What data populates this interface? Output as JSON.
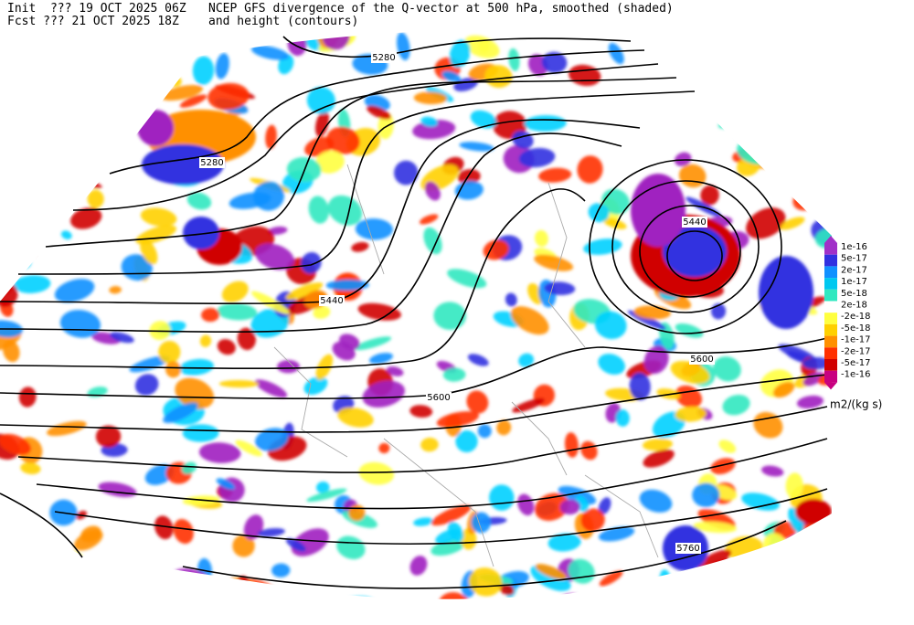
{
  "header": {
    "init": "Init  ??? 19 OCT 2025 06Z",
    "fcst": "Fcst ??? 21 OCT 2025 18Z",
    "title": "NCEP GFS divergence of the Q-vector at 500 hPa, smoothed (shaded)",
    "subtitle": "and height (contours)"
  },
  "contour_labels": [
    "5280",
    "5280",
    "5440",
    "5440",
    "5600",
    "5600",
    "5760"
  ],
  "colorbar": {
    "labels": [
      "1e-16",
      "5e-17",
      "2e-17",
      "1e-17",
      "5e-18",
      "2e-18",
      "-2e-18",
      "-5e-18",
      "-1e-17",
      "-2e-17",
      "-5e-17",
      "-1e-16"
    ],
    "units": "m2/(kg s)"
  }
}
